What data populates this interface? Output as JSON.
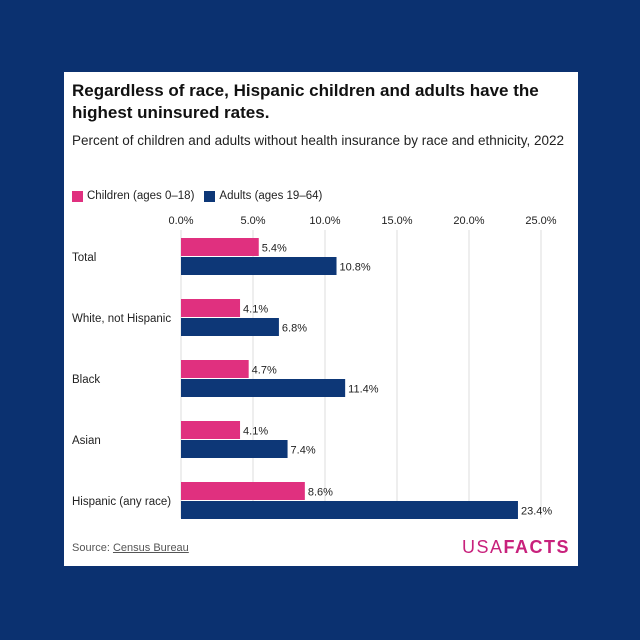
{
  "card": {
    "title": "Regardless of race, Hispanic children and adults have the highest uninsured rates.",
    "subtitle": "Percent of children and adults without health insurance by race and ethnicity, 2022",
    "source_prefix": "Source: ",
    "source_link": "Census Bureau",
    "logo_usa": "USA",
    "logo_facts": "FACTS"
  },
  "colors": {
    "children": "#e0307f",
    "adults": "#0d3777",
    "logo": "#c8217c"
  },
  "chart_data": {
    "type": "bar",
    "orientation": "horizontal",
    "title": "Regardless of race, Hispanic children and adults have the highest uninsured rates.",
    "subtitle": "Percent of children and adults without health insurance by race and ethnicity, 2022",
    "categories": [
      "Total",
      "White, not Hispanic",
      "Black",
      "Asian",
      "Hispanic (any race)"
    ],
    "series": [
      {
        "name": "Children (ages 0–18)",
        "values": [
          5.4,
          4.1,
          4.7,
          4.1,
          8.6
        ],
        "labels": [
          "5.4%",
          "4.1%",
          "4.7%",
          "4.1%",
          "8.6%"
        ]
      },
      {
        "name": "Adults (ages 19–64)",
        "values": [
          10.8,
          6.8,
          11.4,
          7.4,
          23.4
        ],
        "labels": [
          "10.8%",
          "6.8%",
          "11.4%",
          "7.4%",
          "23.4%"
        ]
      }
    ],
    "xticks": [
      0,
      5,
      10,
      15,
      20,
      25
    ],
    "xtick_labels": [
      "0.0%",
      "5.0%",
      "10.0%",
      "15.0%",
      "20.0%",
      "25.0%"
    ],
    "xlim": [
      0,
      25
    ],
    "grid": true,
    "legend_position": "top-left"
  }
}
